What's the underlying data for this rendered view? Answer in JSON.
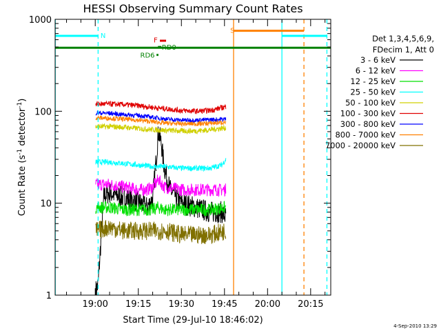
{
  "chart_data": {
    "type": "line",
    "title": "HESSI Observing Summary Count Rates",
    "xlabel": "Start Time (29-Jul-10 18:46:02)",
    "ylabel_main": "Count Rate (s",
    "ylabel_sup1": "-1",
    "ylabel_mid": " detector",
    "ylabel_sup2": "-1",
    "ylabel_end": ")",
    "footer": "4-Sep-2010 13:29",
    "x_range": [
      "18:46:02",
      "20:22:00"
    ],
    "y_range": [
      1,
      1000
    ],
    "y_scale": "log",
    "x_ticks": [
      "19:00",
      "19:15",
      "19:30",
      "19:45",
      "20:00",
      "20:15"
    ],
    "y_ticks": [
      "1",
      "10",
      "100",
      "1000"
    ],
    "legend": {
      "position": "right",
      "header": [
        "Det 1,3,4,5,6,9,",
        "FDecim 1, Att 0"
      ],
      "entries": [
        {
          "label": "3 - 6 keV",
          "color": "#000000"
        },
        {
          "label": "6 - 12 keV",
          "color": "#ff00ff"
        },
        {
          "label": "12 - 25 keV",
          "color": "#00e000"
        },
        {
          "label": "25 - 50 keV",
          "color": "#00ffff"
        },
        {
          "label": "50 - 100 keV",
          "color": "#d0d000"
        },
        {
          "label": "100 - 300 keV",
          "color": "#e00000"
        },
        {
          "label": "300 - 800 keV",
          "color": "#0000ff"
        },
        {
          "label": "800 - 7000 keV",
          "color": "#ff8000"
        },
        {
          "label": "7000 - 20000 keV",
          "color": "#807000"
        }
      ]
    },
    "series": [
      {
        "name": "3 - 6 keV",
        "color": "#000000",
        "noise": 0.12,
        "points": [
          [
            "19:00:10",
            1.1
          ],
          [
            "19:01:00",
            1.3
          ],
          [
            "19:02:00",
            4
          ],
          [
            "19:03:00",
            12
          ],
          [
            "19:05:00",
            13
          ],
          [
            "19:08:00",
            12
          ],
          [
            "19:12:00",
            11
          ],
          [
            "19:16:00",
            10
          ],
          [
            "19:18:00",
            9
          ],
          [
            "19:20:00",
            11
          ],
          [
            "19:21:00",
            25
          ],
          [
            "19:22:00",
            60
          ],
          [
            "19:23:00",
            45
          ],
          [
            "19:24:00",
            25
          ],
          [
            "19:26:00",
            14
          ],
          [
            "19:30:00",
            10
          ],
          [
            "19:35:00",
            9
          ],
          [
            "19:40:00",
            8
          ],
          [
            "19:44:00",
            8
          ],
          [
            "19:45:30",
            7
          ]
        ]
      },
      {
        "name": "6 - 12 keV",
        "color": "#ff00ff",
        "noise": 0.07,
        "points": [
          [
            "19:00:10",
            16
          ],
          [
            "19:05:00",
            16
          ],
          [
            "19:10:00",
            15
          ],
          [
            "19:15:00",
            14
          ],
          [
            "19:18:00",
            14
          ],
          [
            "19:20:00",
            15
          ],
          [
            "19:22:00",
            18
          ],
          [
            "19:24:00",
            15
          ],
          [
            "19:30:00",
            14
          ],
          [
            "19:40:00",
            14
          ],
          [
            "19:45:30",
            14
          ]
        ]
      },
      {
        "name": "12 - 25 keV",
        "color": "#00e000",
        "noise": 0.07,
        "points": [
          [
            "19:00:10",
            9
          ],
          [
            "19:05:00",
            9
          ],
          [
            "19:10:00",
            8.5
          ],
          [
            "19:15:00",
            8.5
          ],
          [
            "19:20:00",
            8.5
          ],
          [
            "19:22:00",
            9
          ],
          [
            "19:24:00",
            8.5
          ],
          [
            "19:30:00",
            8.5
          ],
          [
            "19:40:00",
            8.5
          ],
          [
            "19:45:30",
            9
          ]
        ]
      },
      {
        "name": "25 - 50 keV",
        "color": "#00ffff",
        "noise": 0.03,
        "points": [
          [
            "19:00:10",
            28
          ],
          [
            "19:05:00",
            28
          ],
          [
            "19:10:00",
            27
          ],
          [
            "19:15:00",
            26
          ],
          [
            "19:20:00",
            25
          ],
          [
            "19:24:00",
            25
          ],
          [
            "19:30:00",
            24
          ],
          [
            "19:35:00",
            24
          ],
          [
            "19:40:00",
            24
          ],
          [
            "19:44:00",
            26
          ],
          [
            "19:45:30",
            30
          ]
        ]
      },
      {
        "name": "50 - 100 keV",
        "color": "#d0d000",
        "noise": 0.03,
        "points": [
          [
            "19:00:10",
            68
          ],
          [
            "19:05:00",
            68
          ],
          [
            "19:10:00",
            67
          ],
          [
            "19:15:00",
            65
          ],
          [
            "19:20:00",
            63
          ],
          [
            "19:25:00",
            62
          ],
          [
            "19:30:00",
            61
          ],
          [
            "19:35:00",
            61
          ],
          [
            "19:40:00",
            63
          ],
          [
            "19:45:30",
            66
          ]
        ]
      },
      {
        "name": "100 - 300 keV",
        "color": "#e00000",
        "noise": 0.03,
        "points": [
          [
            "19:00:10",
            120
          ],
          [
            "19:05:00",
            120
          ],
          [
            "19:10:00",
            118
          ],
          [
            "19:15:00",
            115
          ],
          [
            "19:20:00",
            110
          ],
          [
            "19:25:00",
            106
          ],
          [
            "19:30:00",
            102
          ],
          [
            "19:35:00",
            100
          ],
          [
            "19:40:00",
            102
          ],
          [
            "19:45:30",
            112
          ]
        ]
      },
      {
        "name": "300 - 800 keV",
        "color": "#0000ff",
        "noise": 0.025,
        "points": [
          [
            "19:00:10",
            96
          ],
          [
            "19:05:00",
            95
          ],
          [
            "19:10:00",
            92
          ],
          [
            "19:15:00",
            90
          ],
          [
            "19:20:00",
            86
          ],
          [
            "19:25:00",
            82
          ],
          [
            "19:30:00",
            80
          ],
          [
            "19:35:00",
            80
          ],
          [
            "19:40:00",
            81
          ],
          [
            "19:45:30",
            82
          ]
        ]
      },
      {
        "name": "800 - 7000 keV",
        "color": "#ff8000",
        "noise": 0.025,
        "points": [
          [
            "19:00:10",
            85
          ],
          [
            "19:05:00",
            84
          ],
          [
            "19:10:00",
            82
          ],
          [
            "19:15:00",
            80
          ],
          [
            "19:20:00",
            77
          ],
          [
            "19:25:00",
            74
          ],
          [
            "19:30:00",
            73
          ],
          [
            "19:35:00",
            73
          ],
          [
            "19:40:00",
            74
          ],
          [
            "19:45:30",
            76
          ]
        ]
      },
      {
        "name": "7000 - 20000 keV",
        "color": "#807000",
        "noise": 0.1,
        "points": [
          [
            "19:00:10",
            5
          ],
          [
            "19:05:00",
            5.5
          ],
          [
            "19:10:00",
            5
          ],
          [
            "19:15:00",
            5
          ],
          [
            "19:20:00",
            5
          ],
          [
            "19:25:00",
            5
          ],
          [
            "19:30:00",
            4.5
          ],
          [
            "19:35:00",
            4.5
          ],
          [
            "19:40:00",
            4.5
          ],
          [
            "19:45:30",
            5
          ]
        ]
      }
    ],
    "vlines": [
      {
        "t": "18:46:05",
        "color": "#00ffff",
        "dash": false
      },
      {
        "t": "19:01:00",
        "color": "#00ffff",
        "dash": true
      },
      {
        "t": "19:48:10",
        "color": "#ff8000",
        "dash": false
      },
      {
        "t": "20:05:00",
        "color": "#00ffff",
        "dash": false
      },
      {
        "t": "20:12:40",
        "color": "#ff8000",
        "dash": true
      },
      {
        "t": "20:20:40",
        "color": "#00ffff",
        "dash": true
      }
    ],
    "flag_bars": [
      {
        "t0": "18:46:02",
        "t1": "19:01:00",
        "y": 660,
        "color": "#00ffff",
        "width": 3
      },
      {
        "t0": "20:05:00",
        "t1": "20:20:40",
        "y": 660,
        "color": "#00ffff",
        "width": 3
      },
      {
        "t0": "19:48:10",
        "t1": "20:12:40",
        "y": 750,
        "color": "#ff8000",
        "width": 3
      },
      {
        "t0": "18:46:02",
        "t1": "20:22:00",
        "y": 490,
        "color": "#008000",
        "width": 3
      },
      {
        "t0": "19:22:30",
        "t1": "19:24:40",
        "y": 585,
        "color": "#e00000",
        "width": 3
      },
      {
        "t0": "19:21:50",
        "t1": "19:23:00",
        "y": 500,
        "color": "#008000",
        "width": 3
      },
      {
        "t0": "19:21:20",
        "t1": "19:22:00",
        "y": 410,
        "color": "#008000",
        "width": 3
      }
    ],
    "flag_labels": [
      {
        "text": "N",
        "t": "19:01:50",
        "y": 670,
        "color": "#00ffff"
      },
      {
        "text": "S",
        "t": "19:47:00",
        "y": 765,
        "color": "#ff8000"
      },
      {
        "text": "F",
        "t": "19:20:20",
        "y": 600,
        "color": "#e00000"
      },
      {
        "text": "RD0",
        "t": "19:23:10",
        "y": 500,
        "color": "#008000"
      },
      {
        "text": "RD6",
        "t": "19:15:40",
        "y": 410,
        "color": "#008000"
      }
    ]
  }
}
